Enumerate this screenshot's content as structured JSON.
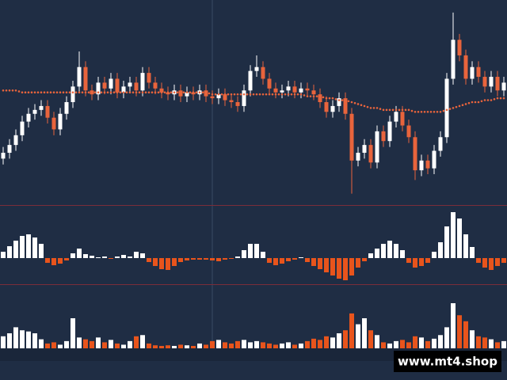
{
  "watermark": "www.mt4.shop",
  "chart_data": [
    {
      "type": "candlestick",
      "open": [
        21,
        24,
        28,
        33,
        40,
        44,
        46,
        48,
        42,
        36,
        44,
        50,
        58,
        68,
        56,
        54,
        60,
        57,
        62,
        55,
        58,
        60,
        56,
        65,
        60,
        57,
        55,
        54,
        56,
        53,
        55,
        54,
        56,
        53,
        52,
        54,
        51,
        50,
        48,
        56,
        66,
        68,
        62,
        57,
        55,
        56,
        58,
        55,
        57,
        56,
        54,
        50,
        45,
        48,
        52,
        44,
        20,
        24,
        28,
        19,
        35,
        30,
        40,
        45,
        38,
        32,
        15,
        20,
        16,
        25,
        32,
        62,
        82,
        74,
        62,
        68,
        63,
        58,
        63,
        56
      ],
      "high": [
        27,
        31,
        36,
        43,
        47,
        49,
        51,
        51,
        45,
        47,
        53,
        61,
        76,
        71,
        59,
        63,
        63,
        65,
        65,
        61,
        63,
        63,
        68,
        68,
        63,
        60,
        58,
        59,
        59,
        58,
        58,
        59,
        59,
        56,
        57,
        57,
        54,
        53,
        59,
        69,
        74,
        71,
        65,
        60,
        59,
        61,
        61,
        60,
        60,
        59,
        57,
        53,
        51,
        55,
        55,
        47,
        27,
        31,
        31,
        38,
        38,
        43,
        48,
        48,
        41,
        35,
        23,
        23,
        28,
        35,
        65,
        96,
        85,
        77,
        71,
        71,
        66,
        66,
        66,
        63
      ],
      "low": [
        18,
        21,
        25,
        30,
        37,
        41,
        43,
        39,
        33,
        33,
        41,
        47,
        55,
        53,
        51,
        51,
        54,
        54,
        52,
        52,
        55,
        53,
        53,
        57,
        54,
        52,
        51,
        51,
        50,
        50,
        51,
        51,
        50,
        49,
        49,
        48,
        47,
        45,
        45,
        53,
        63,
        59,
        54,
        52,
        52,
        53,
        52,
        52,
        53,
        51,
        47,
        42,
        42,
        45,
        41,
        3,
        17,
        21,
        16,
        16,
        27,
        27,
        37,
        35,
        29,
        10,
        12,
        13,
        13,
        22,
        29,
        59,
        71,
        59,
        59,
        60,
        55,
        55,
        53,
        53
      ],
      "close": [
        24,
        28,
        33,
        40,
        44,
        46,
        48,
        42,
        36,
        44,
        50,
        58,
        68,
        56,
        54,
        60,
        57,
        62,
        55,
        58,
        60,
        56,
        65,
        60,
        57,
        55,
        54,
        56,
        53,
        55,
        54,
        56,
        53,
        52,
        54,
        51,
        50,
        48,
        56,
        66,
        68,
        62,
        57,
        55,
        56,
        58,
        55,
        57,
        56,
        54,
        50,
        45,
        48,
        52,
        44,
        20,
        24,
        28,
        19,
        35,
        30,
        40,
        45,
        38,
        32,
        15,
        20,
        16,
        25,
        32,
        62,
        82,
        74,
        62,
        68,
        63,
        58,
        63,
        56,
        60
      ],
      "ma": [
        56,
        56,
        56,
        55,
        55,
        55,
        55,
        55,
        55,
        55,
        55,
        55,
        55,
        55,
        55,
        55,
        55,
        55,
        55,
        55,
        55,
        55,
        55,
        55,
        55,
        55,
        55,
        55,
        55,
        55,
        55,
        55,
        55,
        54,
        54,
        54,
        54,
        54,
        54,
        54,
        54,
        54,
        54,
        54,
        54,
        54,
        54,
        54,
        53,
        53,
        53,
        52,
        52,
        51,
        51,
        50,
        49,
        48,
        47,
        47,
        46,
        46,
        46,
        46,
        46,
        45,
        45,
        45,
        45,
        45,
        46,
        47,
        48,
        49,
        50,
        50,
        51,
        51,
        52,
        52
      ],
      "ma_color": "#e8643c",
      "up_color": "#ffffff",
      "down_color": "#e8643c",
      "ylim": [
        0,
        100
      ]
    },
    {
      "type": "bar",
      "values": [
        8,
        15,
        22,
        28,
        30,
        26,
        18,
        -6,
        -9,
        -7,
        -3,
        6,
        12,
        5,
        3,
        1,
        2,
        -1,
        2,
        4,
        2,
        8,
        6,
        -5,
        -10,
        -14,
        -15,
        -10,
        -5,
        -3,
        -2,
        -2,
        -2,
        -3,
        -4,
        -2,
        -1,
        2,
        10,
        18,
        18,
        8,
        -6,
        -9,
        -7,
        -4,
        -2,
        1,
        -5,
        -10,
        -14,
        -18,
        -22,
        -26,
        -28,
        -22,
        -12,
        -4,
        6,
        12,
        18,
        22,
        18,
        10,
        -6,
        -12,
        -10,
        -6,
        8,
        20,
        40,
        58,
        50,
        30,
        14,
        -6,
        -12,
        -15,
        -10,
        -6
      ],
      "up_color": "#ffffff",
      "down_color": "#e8541c",
      "ylim": [
        -30,
        62
      ]
    },
    {
      "type": "bar",
      "values": [
        20,
        25,
        35,
        30,
        28,
        25,
        15,
        8,
        10,
        6,
        12,
        50,
        18,
        15,
        12,
        18,
        10,
        14,
        8,
        6,
        12,
        20,
        22,
        8,
        5,
        4,
        5,
        4,
        6,
        5,
        4,
        8,
        6,
        12,
        14,
        10,
        8,
        12,
        14,
        10,
        12,
        10,
        8,
        6,
        8,
        10,
        6,
        8,
        12,
        16,
        14,
        20,
        18,
        25,
        30,
        58,
        40,
        50,
        30,
        22,
        10,
        8,
        12,
        14,
        10,
        20,
        18,
        12,
        16,
        22,
        35,
        75,
        55,
        45,
        30,
        20,
        18,
        15,
        10,
        12
      ],
      "up_color": "#ffffff",
      "down_color": "#e8541c",
      "ylim": [
        0,
        100
      ]
    }
  ]
}
